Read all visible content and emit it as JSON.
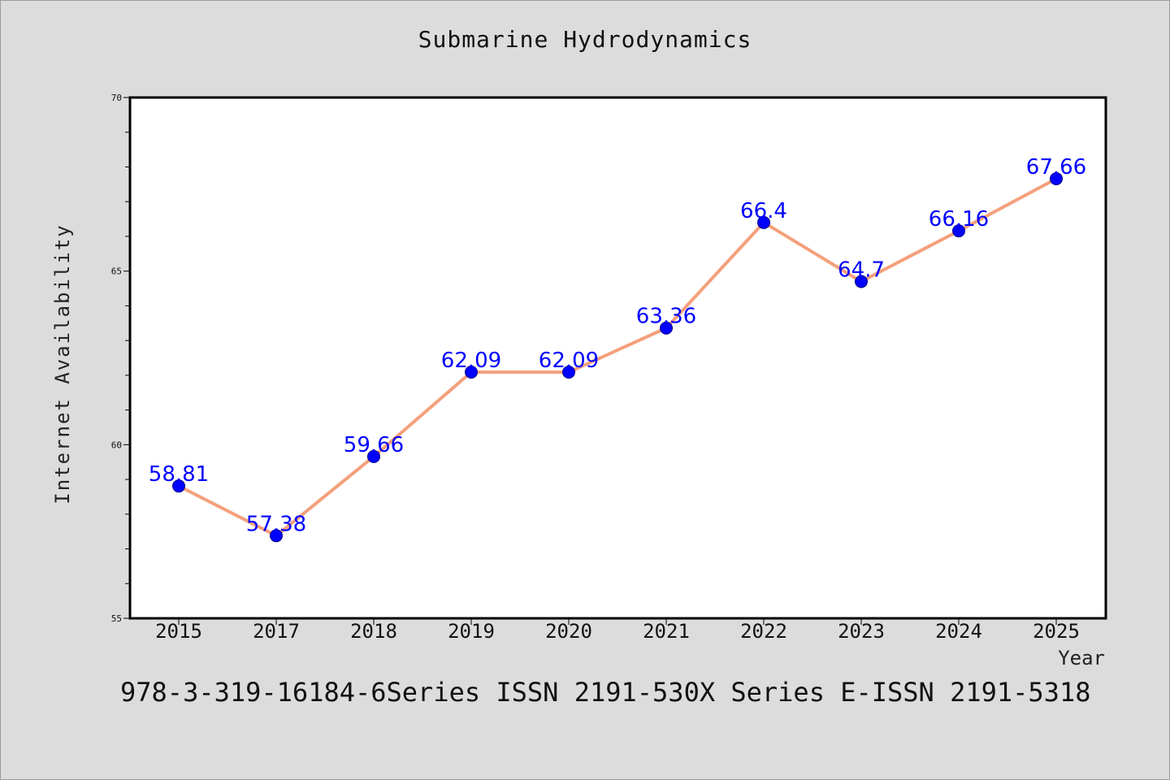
{
  "colors": {
    "background": "#dcdcdc",
    "plot_background": "#ffffff",
    "line": "#f4a07c",
    "marker": "#0000ff",
    "data_label": "#0000ff"
  },
  "footer": {
    "text": "978-3-319-16184-6Series ISSN 2191-530X Series E-ISSN 2191-5318"
  },
  "chart_data": {
    "type": "line",
    "title": "Submarine Hydrodynamics",
    "xlabel": "Year",
    "ylabel": "Internet Availability",
    "categories": [
      "2015",
      "2017",
      "2018",
      "2019",
      "2020",
      "2021",
      "2022",
      "2023",
      "2024",
      "2025"
    ],
    "values": [
      58.81,
      57.38,
      59.66,
      62.09,
      62.09,
      63.36,
      66.4,
      64.7,
      66.16,
      67.66
    ],
    "data_labels": [
      "58.81",
      "57.38",
      "59.66",
      "62.09",
      "62.09",
      "63.36",
      "66.4",
      "64.7",
      "66.16",
      "67.66"
    ],
    "ylim": [
      55,
      70
    ],
    "y_ticks": [
      55,
      60,
      65,
      70
    ],
    "y_minor_step": 1,
    "grid": false,
    "legend": "none"
  }
}
